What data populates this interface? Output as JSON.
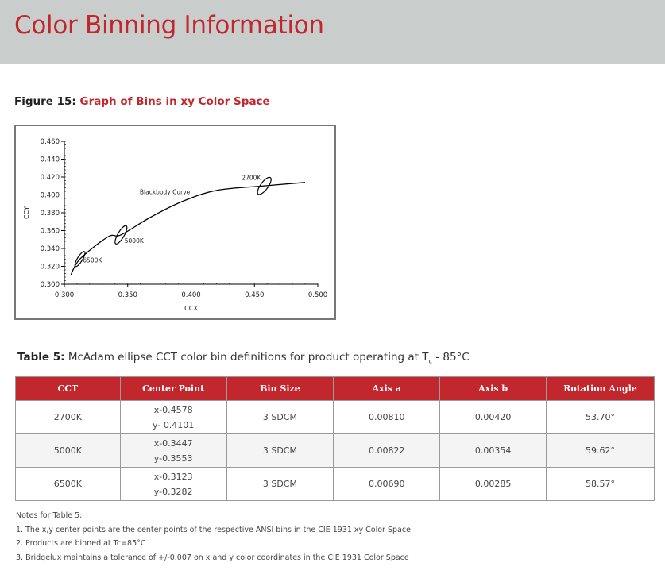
{
  "header": {
    "title": "Color Binning Information"
  },
  "figure": {
    "label": "Figure 15:",
    "title": "Graph of Bins in xy Color Space"
  },
  "chart_data": {
    "type": "line",
    "xlabel": "CCX",
    "ylabel": "CCY",
    "xlim": [
      0.3,
      0.5
    ],
    "ylim": [
      0.3,
      0.46
    ],
    "x_ticks": [
      "0.300",
      "0.350",
      "0.400",
      "0.450",
      "0.500"
    ],
    "y_ticks": [
      "0.300",
      "0.320",
      "0.340",
      "0.360",
      "0.380",
      "0.400",
      "0.420",
      "0.440",
      "0.460"
    ],
    "series": [
      {
        "name": "Blackbody Curve",
        "x": [
          0.305,
          0.3123,
          0.3344,
          0.3447,
          0.368,
          0.392,
          0.42,
          0.4578,
          0.49
        ],
        "y": [
          0.31,
          0.3282,
          0.353,
          0.3553,
          0.375,
          0.392,
          0.405,
          0.4101,
          0.414
        ]
      }
    ],
    "ellipses": [
      {
        "label": "6500K",
        "cx": 0.3123,
        "cy": 0.3282,
        "a": 0.0069,
        "b": 0.00285,
        "angle": 58.57
      },
      {
        "label": "5000K",
        "cx": 0.3447,
        "cy": 0.3553,
        "a": 0.00822,
        "b": 0.00354,
        "angle": 59.62
      },
      {
        "label": "2700K",
        "cx": 0.4578,
        "cy": 0.4101,
        "a": 0.0081,
        "b": 0.0042,
        "angle": 53.7
      }
    ],
    "annotations": [
      "Blackbody Curve",
      "6500K",
      "5000K",
      "2700K"
    ]
  },
  "table_caption": {
    "label": "Table 5:",
    "text": "McAdam ellipse CCT color bin definitions for product operating at T",
    "sub": "c",
    "tail": " - 85°C"
  },
  "table": {
    "headers": [
      "CCT",
      "Center Point",
      "Bin Size",
      "Axis a",
      "Axis b",
      "Rotation Angle"
    ],
    "rows": [
      {
        "cct": "2700K",
        "x": "x-0.4578",
        "y": "y- 0.4101",
        "bin": "3 SDCM",
        "a": "0.00810",
        "b": "0.00420",
        "angle": "53.70°"
      },
      {
        "cct": "5000K",
        "x": "x-0.3447",
        "y": "y-0.3553",
        "bin": "3 SDCM",
        "a": "0.00822",
        "b": "0.00354",
        "angle": "59.62°"
      },
      {
        "cct": "6500K",
        "x": "x-0.3123",
        "y": "y-0.3282",
        "bin": "3 SDCM",
        "a": "0.00690",
        "b": "0.00285",
        "angle": "58.57°"
      }
    ]
  },
  "notes": {
    "title": "Notes for Table 5:",
    "items": [
      "1.  The x,y center points are the center points of the respective ANSI bins in the CIE 1931 xy Color Space",
      "2.  Products are binned at Tc=85°C",
      "3.  Bridgelux maintains a tolerance of +/-0.007 on x and y color coordinates in the CIE 1931 Color Space"
    ]
  }
}
